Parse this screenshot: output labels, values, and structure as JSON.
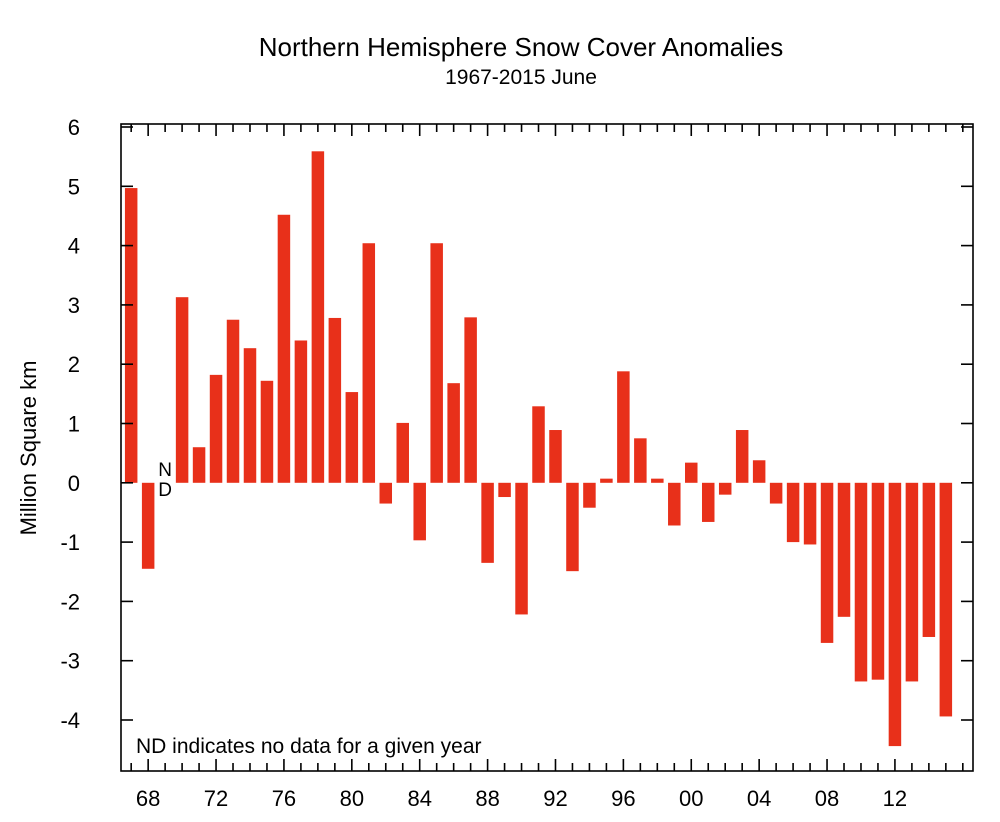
{
  "chart_data": {
    "type": "bar",
    "title": "Northern Hemisphere Snow Cover Anomalies",
    "subtitle": "1967-2015 June",
    "ylabel": "Million Square km",
    "xlabel": "",
    "ylim": [
      -5,
      6
    ],
    "yticks": [
      "6",
      "5",
      "4",
      "3",
      "2",
      "1",
      "0",
      "-1",
      "-2",
      "-3",
      "-4"
    ],
    "ytick_values": [
      6,
      5,
      4,
      3,
      2,
      1,
      0,
      -1,
      -2,
      -3,
      -4
    ],
    "xticks": [
      "68",
      "72",
      "76",
      "80",
      "84",
      "88",
      "92",
      "96",
      "00",
      "04",
      "08",
      "12"
    ],
    "xtick_years": [
      1968,
      1972,
      1976,
      1980,
      1984,
      1988,
      1992,
      1996,
      2000,
      2004,
      2008,
      2012
    ],
    "xlim": [
      1966.4,
      2016.6
    ],
    "bar_color": "#e8301a",
    "nd_marker": {
      "year": 1969,
      "line1": "N",
      "line2": "D"
    },
    "note": "ND indicates no data for a given year",
    "years": [
      1967,
      1968,
      1969,
      1970,
      1971,
      1972,
      1973,
      1974,
      1975,
      1976,
      1977,
      1978,
      1979,
      1980,
      1981,
      1982,
      1983,
      1984,
      1985,
      1986,
      1987,
      1988,
      1989,
      1990,
      1991,
      1992,
      1993,
      1994,
      1995,
      1996,
      1997,
      1998,
      1999,
      2000,
      2001,
      2002,
      2003,
      2004,
      2005,
      2006,
      2007,
      2008,
      2009,
      2010,
      2011,
      2012,
      2013,
      2014,
      2015
    ],
    "values": [
      4.97,
      -1.45,
      null,
      3.13,
      0.6,
      1.82,
      2.75,
      2.27,
      1.72,
      4.52,
      2.4,
      5.59,
      2.78,
      1.53,
      4.04,
      -0.35,
      1.01,
      -0.97,
      4.04,
      1.68,
      2.79,
      -1.35,
      -0.24,
      -2.22,
      1.29,
      0.89,
      -1.49,
      -0.42,
      0.07,
      1.88,
      0.75,
      0.07,
      -0.72,
      0.34,
      -0.66,
      -0.2,
      0.89,
      0.38,
      -0.35,
      -1.0,
      -1.04,
      -2.7,
      -2.26,
      -3.35,
      -3.32,
      -4.44,
      -3.35,
      -2.6,
      -3.94
    ]
  }
}
